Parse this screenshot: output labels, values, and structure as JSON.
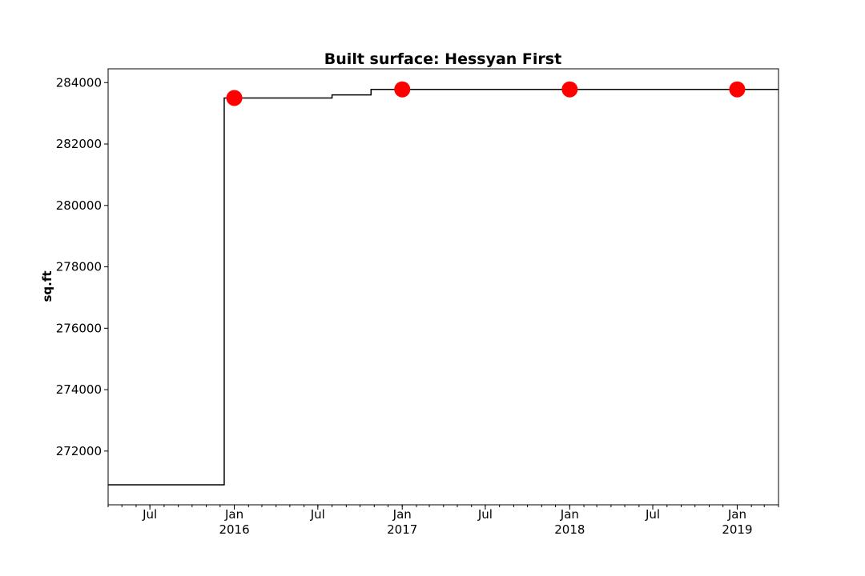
{
  "chart_data": {
    "type": "line",
    "title": "Built surface: Hessyan First",
    "xlabel": "",
    "ylabel": "sq.ft",
    "xlim": [
      "2015-04-01",
      "2019-04-01"
    ],
    "ylim": [
      270250,
      284450
    ],
    "yticks": [
      272000,
      274000,
      276000,
      278000,
      280000,
      282000,
      284000
    ],
    "xticks": [
      {
        "date": "2015-07-01",
        "label": "Jul",
        "sub": ""
      },
      {
        "date": "2016-01-01",
        "label": "Jan",
        "sub": "2016"
      },
      {
        "date": "2016-07-01",
        "label": "Jul",
        "sub": ""
      },
      {
        "date": "2017-01-01",
        "label": "Jan",
        "sub": "2017"
      },
      {
        "date": "2017-07-01",
        "label": "Jul",
        "sub": ""
      },
      {
        "date": "2018-01-01",
        "label": "Jan",
        "sub": "2018"
      },
      {
        "date": "2018-07-01",
        "label": "Jul",
        "sub": ""
      },
      {
        "date": "2019-01-01",
        "label": "Jan",
        "sub": "2019"
      }
    ],
    "series": [
      {
        "style": "step",
        "color": "#000000",
        "points": [
          {
            "x": "2015-04-01",
            "y": 270900
          },
          {
            "x": "2015-12-10",
            "y": 283500
          },
          {
            "x": "2016-08-01",
            "y": 283600
          },
          {
            "x": "2016-10-25",
            "y": 283780
          },
          {
            "x": "2019-04-01",
            "y": 283780
          }
        ]
      },
      {
        "style": "markers",
        "color": "#ff0000",
        "points": [
          {
            "x": "2016-01-01",
            "y": 283500
          },
          {
            "x": "2017-01-01",
            "y": 283780
          },
          {
            "x": "2018-01-01",
            "y": 283780
          },
          {
            "x": "2019-01-01",
            "y": 283780
          }
        ]
      }
    ]
  }
}
